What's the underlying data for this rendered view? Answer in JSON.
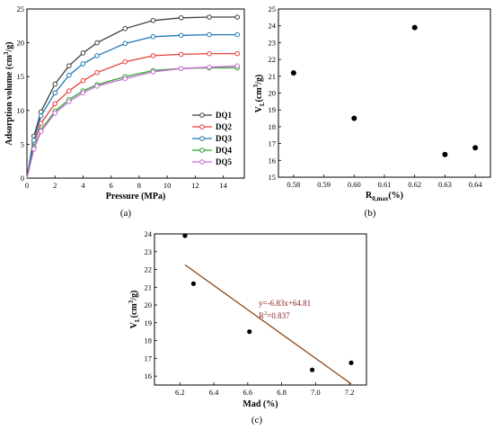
{
  "chart_data": [
    {
      "id": "a",
      "type": "line",
      "panel_label": "(a)",
      "xlabel": "Pressure (MPa)",
      "ylabel_main": "Adsorption volume (cm",
      "ylabel_sup": "3",
      "ylabel_end": "/g)",
      "xlim": [
        0,
        15.5
      ],
      "ylim": [
        0,
        25
      ],
      "xticks": [
        0,
        2,
        4,
        6,
        8,
        10,
        12,
        14
      ],
      "yticks": [
        0,
        5,
        10,
        15,
        20,
        25
      ],
      "legend_position": "bottom-right",
      "x": [
        0,
        0.5,
        1,
        2,
        3,
        4,
        5,
        7,
        9,
        11,
        13,
        15
      ],
      "series": [
        {
          "name": "DQ1",
          "color": "#404040",
          "values": [
            0,
            6.2,
            9.8,
            13.9,
            16.6,
            18.5,
            20.0,
            22.1,
            23.3,
            23.7,
            23.8,
            23.8
          ]
        },
        {
          "name": "DQ2",
          "color": "#e8403a",
          "values": [
            0,
            5.2,
            8.1,
            11.0,
            12.9,
            14.4,
            15.6,
            17.2,
            18.1,
            18.3,
            18.4,
            18.4
          ]
        },
        {
          "name": "DQ3",
          "color": "#1f77b4",
          "values": [
            0,
            5.6,
            9.2,
            12.6,
            15.2,
            16.9,
            18.1,
            19.9,
            20.9,
            21.1,
            21.2,
            21.2
          ]
        },
        {
          "name": "DQ4",
          "color": "#2ca02c",
          "values": [
            0,
            4.5,
            7.1,
            9.9,
            11.6,
            12.9,
            13.8,
            15.0,
            15.9,
            16.2,
            16.3,
            16.3
          ]
        },
        {
          "name": "DQ5",
          "color": "#c86dd7",
          "values": [
            0,
            4.3,
            6.9,
            9.6,
            11.3,
            12.6,
            13.6,
            14.7,
            15.7,
            16.2,
            16.4,
            16.6
          ]
        }
      ]
    },
    {
      "id": "b",
      "type": "scatter",
      "panel_label": "(b)",
      "xlabel_main": "R",
      "xlabel_sub": "0,max",
      "xlabel_end": "(%)",
      "ylabel_main": "V",
      "ylabel_sub": "L",
      "ylabel_mid": "(cm",
      "ylabel_sup": "3",
      "ylabel_end": "/g)",
      "xlim": [
        0.575,
        0.645
      ],
      "ylim": [
        15,
        25
      ],
      "xticks": [
        0.58,
        0.59,
        0.6,
        0.61,
        0.62,
        0.63,
        0.64
      ],
      "yticks": [
        15,
        16,
        17,
        18,
        19,
        20,
        21,
        22,
        23,
        24,
        25
      ],
      "x": [
        0.58,
        0.6,
        0.62,
        0.63,
        0.64
      ],
      "y": [
        21.2,
        18.5,
        23.9,
        16.35,
        16.75
      ]
    },
    {
      "id": "c",
      "type": "scatter",
      "panel_label": "(c)",
      "xlabel": "Mad (%)",
      "ylabel_main": "V",
      "ylabel_sub": "L",
      "ylabel_mid": "(cm",
      "ylabel_sup": "3",
      "ylabel_end": "/g)",
      "xlim": [
        6.05,
        7.3
      ],
      "ylim": [
        15.5,
        24
      ],
      "xticks": [
        6.2,
        6.4,
        6.6,
        6.8,
        7.0,
        7.2
      ],
      "yticks": [
        16,
        17,
        18,
        19,
        20,
        21,
        22,
        23,
        24
      ],
      "x": [
        6.23,
        6.28,
        6.61,
        6.98,
        7.21
      ],
      "y": [
        23.9,
        21.2,
        18.5,
        16.35,
        16.75
      ],
      "fit": {
        "slope": -6.83,
        "intercept": 64.81,
        "x_range": [
          6.23,
          7.21
        ],
        "color": "#8b4513"
      },
      "equation": "y=-6.83x+64.81",
      "r2_main": "R",
      "r2_sup": "2",
      "r2_end": "=0.837"
    }
  ]
}
